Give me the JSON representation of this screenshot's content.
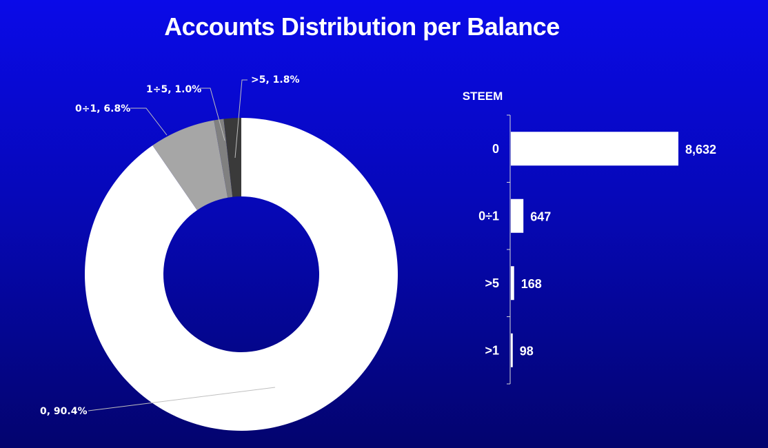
{
  "title": "Accounts Distribution per Balance",
  "chart_data": [
    {
      "type": "pie",
      "variant": "donut",
      "title": "",
      "slices": [
        {
          "label": "0",
          "value": 90.4,
          "data_label": "0, 90.4%",
          "color": "#ffffff"
        },
        {
          "label": "0÷1",
          "value": 6.8,
          "data_label": "0÷1, 6.8%",
          "color": "#a6a6a6"
        },
        {
          "label": "1÷5",
          "value": 1.0,
          "data_label": "1÷5, 1.0%",
          "color": "#808080"
        },
        {
          "label": ">5",
          "value": 1.8,
          "data_label": ">5, 1.8%",
          "color": "#3a3a3a"
        }
      ]
    },
    {
      "type": "bar",
      "orientation": "horizontal",
      "ylabel": "STEEM",
      "categories": [
        "0",
        "0÷1",
        ">5",
        ">1"
      ],
      "values": [
        8632,
        647,
        168,
        98
      ],
      "value_labels": [
        "8,632",
        "647",
        "168",
        "98"
      ],
      "bar_color": "#ffffff",
      "gridlines": false
    }
  ]
}
